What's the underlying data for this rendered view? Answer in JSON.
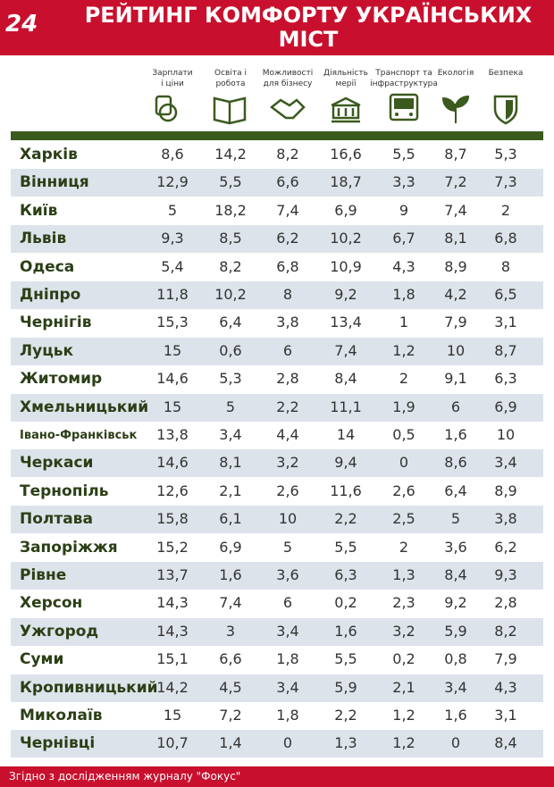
{
  "header": {
    "logo": "24",
    "title_lines": [
      "РЕЙТИНГ КОМФОРТУ УКРАЇНСЬКИХ",
      "МІСТ"
    ]
  },
  "table": {
    "columns": [
      [
        "Зарплати",
        "і ціни"
      ],
      [
        "Освіта і",
        "робота"
      ],
      [
        "Можливості",
        "для бізнесу"
      ],
      [
        "Діяльність",
        "мерії"
      ],
      [
        "Транспорт та",
        "інфраструктура"
      ],
      [
        "Екологія"
      ],
      [
        "Безпека"
      ]
    ],
    "rows": [
      [
        "Харків",
        "8,6",
        "14,2",
        "8,2",
        "16,6",
        "5,5",
        "8,7",
        "5,3"
      ],
      [
        "Вінниця",
        "12,9",
        "5,5",
        "6,6",
        "18,7",
        "3,3",
        "7,2",
        "7,3"
      ],
      [
        "Київ",
        "5",
        "18,2",
        "7,4",
        "6,9",
        "9",
        "7,4",
        "2"
      ],
      [
        "Львів",
        "9,3",
        "8,5",
        "6,2",
        "10,2",
        "6,7",
        "8,1",
        "6,8"
      ],
      [
        "Одеса",
        "5,4",
        "8,2",
        "6,8",
        "10,9",
        "4,3",
        "8,9",
        "8"
      ],
      [
        "Дніпро",
        "11,8",
        "10,2",
        "8",
        "9,2",
        "1,8",
        "4,2",
        "6,5"
      ],
      [
        "Чернігів",
        "15,3",
        "6,4",
        "3,8",
        "13,4",
        "1",
        "7,9",
        "3,1"
      ],
      [
        "Луцьк",
        "15",
        "0,6",
        "6",
        "7,4",
        "1,2",
        "10",
        "8,7"
      ],
      [
        "Житомир",
        "14,6",
        "5,3",
        "2,8",
        "8,4",
        "2",
        "9,1",
        "6,3"
      ],
      [
        "Хмельницький",
        "15",
        "5",
        "2,2",
        "11,1",
        "1,9",
        "6",
        "6,9"
      ],
      [
        "Івано-Франківськ",
        "13,8",
        "3,4",
        "4,4",
        "14",
        "0,5",
        "1,6",
        "10"
      ],
      [
        "Черкаси",
        "14,6",
        "8,1",
        "3,2",
        "9,4",
        "0",
        "8,6",
        "3,4"
      ],
      [
        "Тернопіль",
        "12,6",
        "2,1",
        "2,6",
        "11,6",
        "2,6",
        "6,4",
        "8,9"
      ],
      [
        "Полтава",
        "15,8",
        "6,1",
        "10",
        "2,2",
        "2,5",
        "5",
        "3,8"
      ],
      [
        "Запоріжжя",
        "15,2",
        "6,9",
        "5",
        "5,5",
        "2",
        "3,6",
        "6,2"
      ],
      [
        "Рівне",
        "13,7",
        "1,6",
        "3,6",
        "6,3",
        "1,3",
        "8,4",
        "9,3"
      ],
      [
        "Херсон",
        "14,3",
        "7,4",
        "6",
        "0,2",
        "2,3",
        "9,2",
        "2,8"
      ],
      [
        "Ужгород",
        "14,3",
        "3",
        "3,4",
        "1,6",
        "3,2",
        "5,9",
        "8,2"
      ],
      [
        "Суми",
        "15,1",
        "6,6",
        "1,8",
        "5,5",
        "0,2",
        "0,8",
        "7,9"
      ],
      [
        "Кропивницький",
        "14,2",
        "4,5",
        "3,4",
        "5,9",
        "2,1",
        "3,4",
        "4,3"
      ],
      [
        "Миколаїв",
        "15",
        "7,2",
        "1,8",
        "2,2",
        "1,2",
        "1,6",
        "3,1"
      ],
      [
        "Чернівці",
        "10,7",
        "1,4",
        "0",
        "1,3",
        "1,2",
        "0",
        "8,4"
      ]
    ]
  },
  "footer": {
    "text": "Згідно з дослідженням журналу \"Фокус\""
  }
}
